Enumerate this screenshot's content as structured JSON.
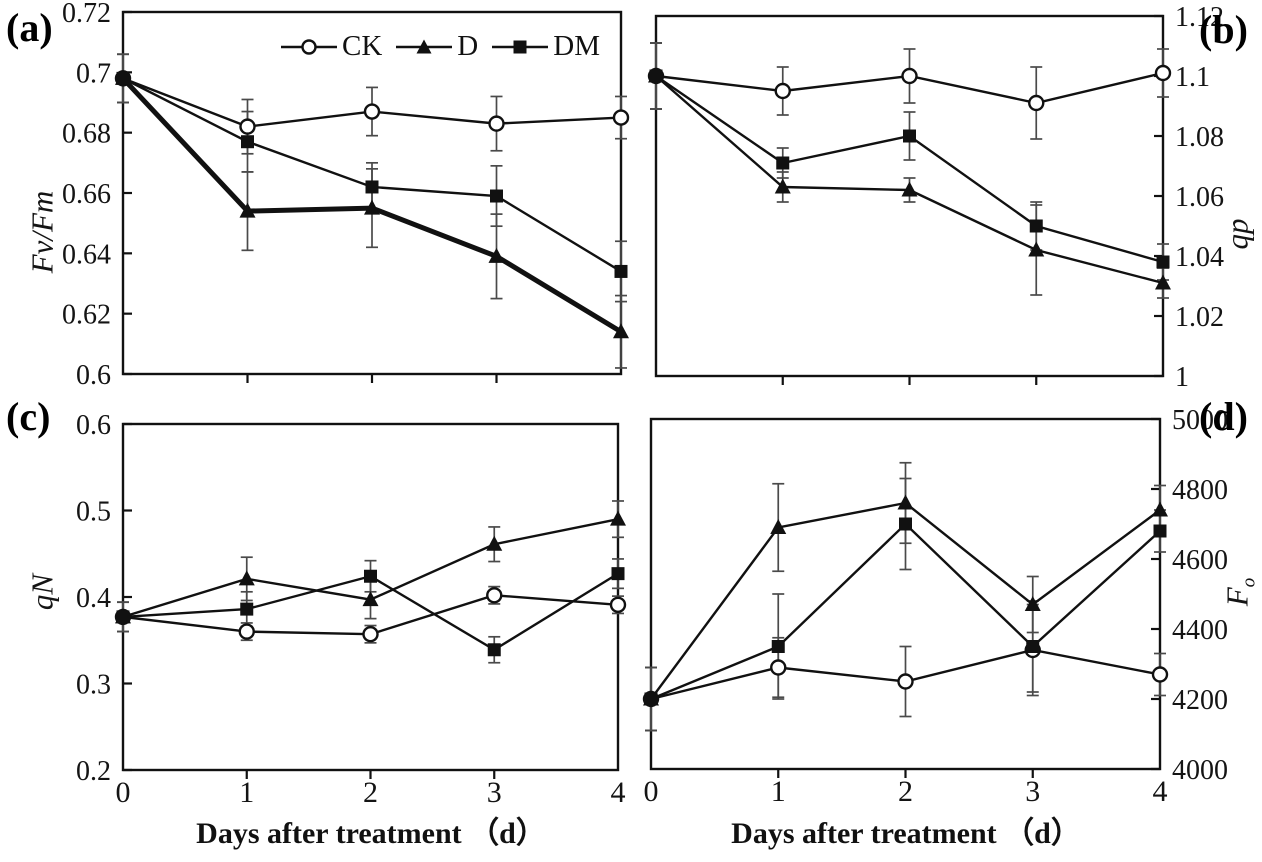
{
  "figure": {
    "xlabel": "Days after treatment （d）",
    "x_tick_labels": [
      "0",
      "1",
      "2",
      "3",
      "4"
    ],
    "ink_color": "#111111",
    "error_bar_color": "#4a4a4a",
    "background_color": "#ffffff"
  },
  "legend": {
    "items": [
      {
        "label": "CK",
        "marker": "circle",
        "fill": "open"
      },
      {
        "label": "D",
        "marker": "triangle",
        "fill": "solid"
      },
      {
        "label": "DM",
        "marker": "square",
        "fill": "solid"
      }
    ]
  },
  "chart_data": [
    {
      "id": "a",
      "panel_label": "(a)",
      "type": "line",
      "ylabel_main": "Fv/Fm",
      "ylabel_sub": "",
      "ylabel_side": "left",
      "xlim": [
        0,
        4
      ],
      "ylim": [
        0.6,
        0.72
      ],
      "x": [
        0,
        1,
        2,
        3,
        4
      ],
      "yticks": [
        0.6,
        0.62,
        0.64,
        0.66,
        0.68,
        0.7,
        0.72
      ],
      "ytick_labels": [
        "0.6",
        "0.62",
        "0.64",
        "0.66",
        "0.68",
        "0.7",
        "0.72"
      ],
      "show_x_tick_labels": false,
      "grid": false,
      "series": [
        {
          "name": "CK",
          "marker": "circle",
          "fill": "open",
          "values": [
            0.698,
            0.682,
            0.687,
            0.683,
            0.685
          ],
          "errors": [
            0.008,
            0.009,
            0.008,
            0.009,
            0.007
          ]
        },
        {
          "name": "D",
          "marker": "triangle",
          "fill": "solid",
          "line_width": 5,
          "values": [
            0.698,
            0.654,
            0.655,
            0.639,
            0.614
          ],
          "errors": [
            0.008,
            0.013,
            0.013,
            0.014,
            0.012
          ]
        },
        {
          "name": "DM",
          "marker": "square",
          "fill": "solid",
          "values": [
            0.698,
            0.677,
            0.662,
            0.659,
            0.634
          ],
          "errors": [
            0.008,
            0.01,
            0.008,
            0.01,
            0.01
          ]
        }
      ]
    },
    {
      "id": "b",
      "panel_label": "(b)",
      "type": "line",
      "ylabel_main": "qp",
      "ylabel_sub": "",
      "ylabel_side": "right",
      "xlim": [
        0,
        4
      ],
      "ylim": [
        1,
        1.12
      ],
      "x": [
        0,
        1,
        2,
        3,
        4
      ],
      "yticks": [
        1,
        1.02,
        1.04,
        1.06,
        1.08,
        1.1,
        1.12
      ],
      "ytick_labels": [
        "1",
        "1.02",
        "1.04",
        "1.06",
        "1.08",
        "1.1",
        "1.12"
      ],
      "show_x_tick_labels": false,
      "grid": false,
      "series": [
        {
          "name": "CK",
          "marker": "circle",
          "fill": "open",
          "values": [
            1.1,
            1.095,
            1.1,
            1.091,
            1.101
          ],
          "errors": [
            0.011,
            0.008,
            0.009,
            0.012,
            0.008
          ]
        },
        {
          "name": "D",
          "marker": "triangle",
          "fill": "solid",
          "values": [
            1.1,
            1.063,
            1.062,
            1.042,
            1.031
          ],
          "errors": [
            0.011,
            0.005,
            0.004,
            0.015,
            0.005
          ]
        },
        {
          "name": "DM",
          "marker": "square",
          "fill": "solid",
          "values": [
            1.1,
            1.071,
            1.08,
            1.05,
            1.038
          ],
          "errors": [
            0.011,
            0.005,
            0.008,
            0.008,
            0.006
          ]
        }
      ]
    },
    {
      "id": "c",
      "panel_label": "(c)",
      "type": "line",
      "ylabel_main": "qN",
      "ylabel_sub": "",
      "ylabel_side": "left",
      "xlim": [
        0,
        4
      ],
      "ylim": [
        0.2,
        0.6
      ],
      "x": [
        0,
        1,
        2,
        3,
        4
      ],
      "yticks": [
        0.2,
        0.3,
        0.4,
        0.5,
        0.6
      ],
      "ytick_labels": [
        "0.2",
        "0.3",
        "0.4",
        "0.5",
        "0.6"
      ],
      "show_x_tick_labels": true,
      "grid": false,
      "series": [
        {
          "name": "CK",
          "marker": "circle",
          "fill": "open",
          "values": [
            0.377,
            0.36,
            0.357,
            0.402,
            0.391
          ],
          "errors": [
            0.017,
            0.01,
            0.01,
            0.01,
            0.01
          ]
        },
        {
          "name": "D",
          "marker": "triangle",
          "fill": "solid",
          "values": [
            0.377,
            0.421,
            0.397,
            0.461,
            0.49
          ],
          "errors": [
            0.017,
            0.025,
            0.022,
            0.02,
            0.021
          ]
        },
        {
          "name": "DM",
          "marker": "square",
          "fill": "solid",
          "values": [
            0.377,
            0.386,
            0.424,
            0.339,
            0.427
          ],
          "errors": [
            0.017,
            0.02,
            0.018,
            0.015,
            0.017
          ]
        }
      ]
    },
    {
      "id": "d",
      "panel_label": "(d)",
      "type": "line",
      "ylabel_main": "F",
      "ylabel_sub": "o",
      "ylabel_side": "right",
      "xlim": [
        0,
        4
      ],
      "ylim": [
        4000,
        5000
      ],
      "x": [
        0,
        1,
        2,
        3,
        4
      ],
      "yticks": [
        4000,
        4200,
        4400,
        4600,
        4800,
        5000
      ],
      "ytick_labels": [
        "4000",
        "4200",
        "4400",
        "4600",
        "4800",
        "5000"
      ],
      "show_x_tick_labels": true,
      "grid": false,
      "series": [
        {
          "name": "CK",
          "marker": "circle",
          "fill": "open",
          "values": [
            4200,
            4290,
            4250,
            4340,
            4270
          ],
          "errors": [
            90,
            85,
            100,
            130,
            60
          ]
        },
        {
          "name": "D",
          "marker": "triangle",
          "fill": "solid",
          "values": [
            4200,
            4690,
            4760,
            4470,
            4740
          ],
          "errors": [
            90,
            125,
            115,
            80,
            70
          ]
        },
        {
          "name": "DM",
          "marker": "square",
          "fill": "solid",
          "values": [
            4200,
            4350,
            4700,
            4350,
            4680
          ],
          "errors": [
            90,
            150,
            130,
            130,
            60
          ]
        }
      ]
    }
  ]
}
